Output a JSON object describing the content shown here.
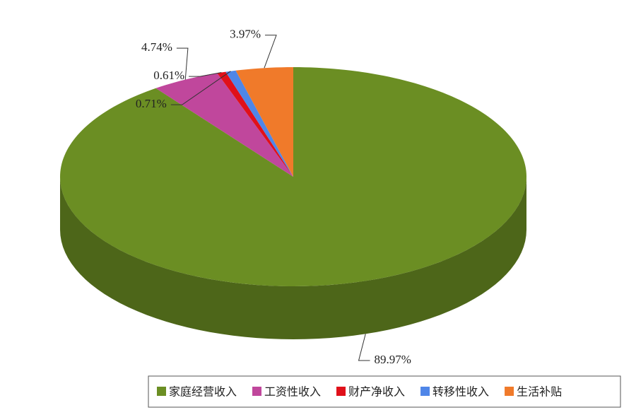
{
  "chart_data": {
    "type": "pie",
    "categories": [
      "家庭经营收入",
      "工资性收入",
      "财产净收入",
      "转移性收入",
      "生活补贴"
    ],
    "values": [
      89.97,
      4.74,
      0.61,
      0.71,
      3.97
    ],
    "value_labels": [
      "89.97%",
      "4.74%",
      "0.61%",
      "0.71%",
      "3.97%"
    ],
    "colors": [
      "#6b8e23",
      "#c0479c",
      "#e0101a",
      "#4f86e8",
      "#f07a2a"
    ],
    "legend": "bottom"
  }
}
